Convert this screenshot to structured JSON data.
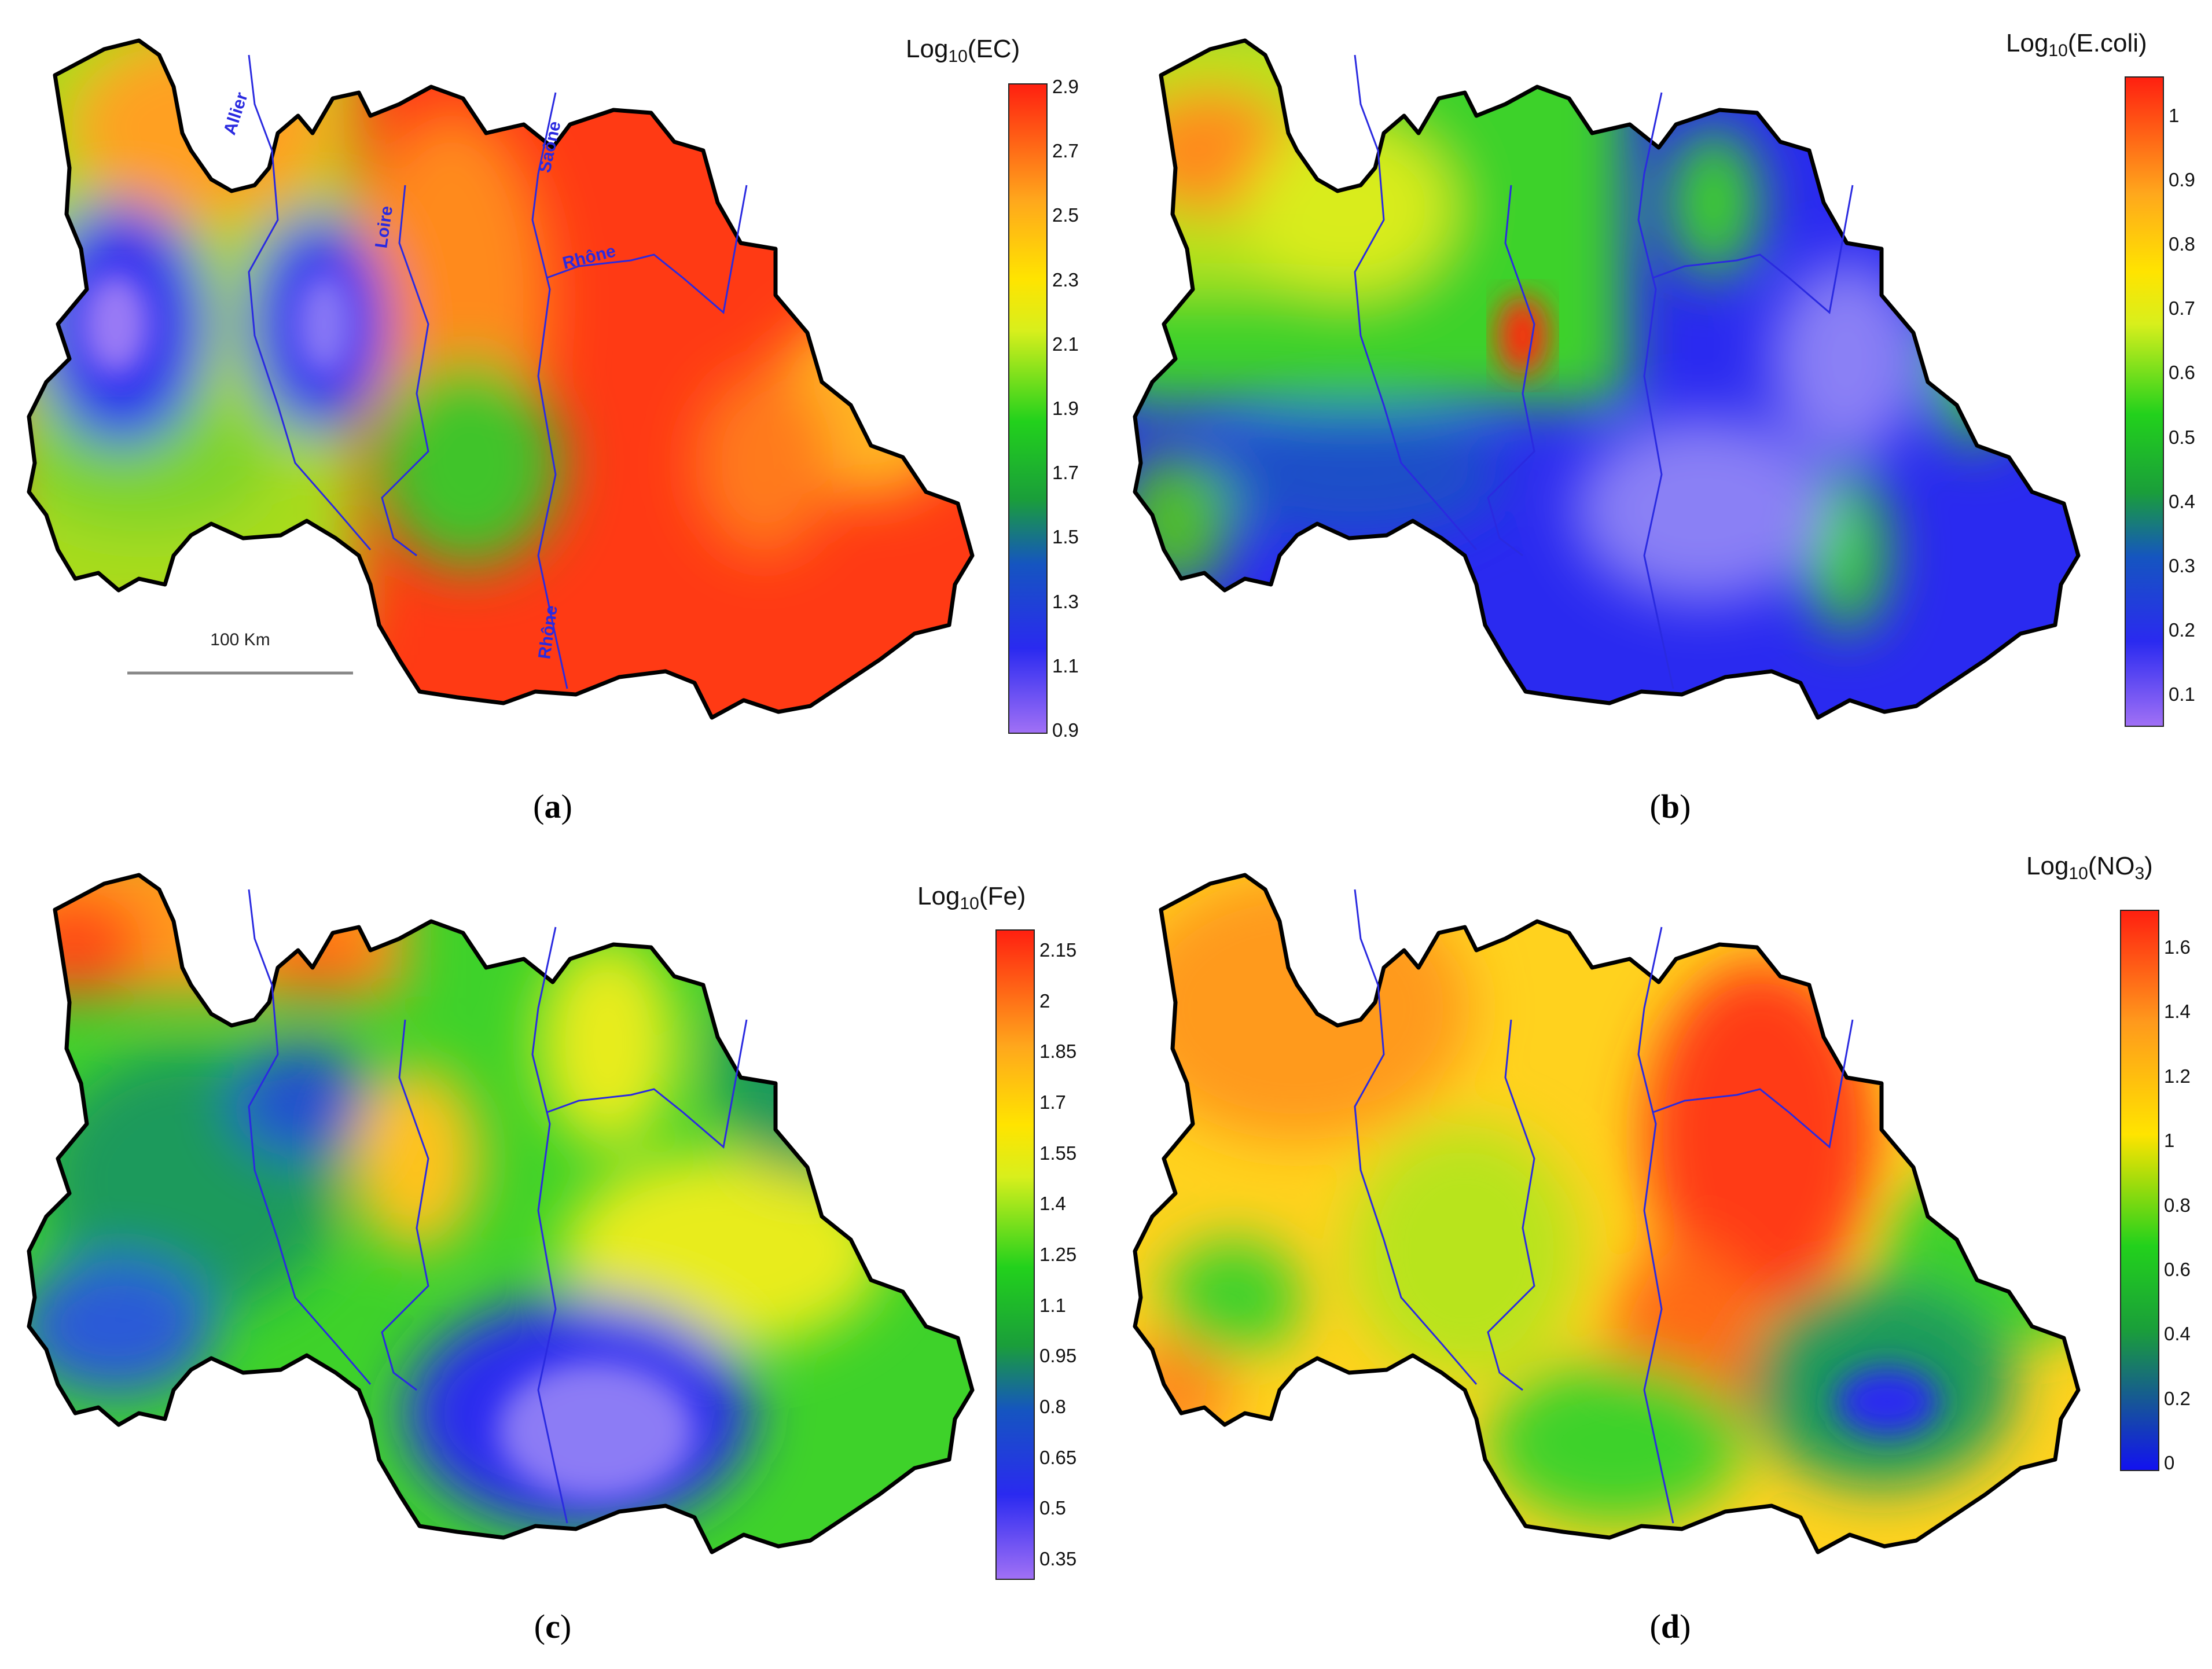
{
  "panels": [
    {
      "id": "a",
      "caption_letter": "a",
      "legend": {
        "prefix": "Log",
        "sub": "10",
        "suffix": "(EC)"
      },
      "ticks": [
        "2.9",
        "2.7",
        "2.5",
        "2.3",
        "2.1",
        "1.9",
        "1.7",
        "1.5",
        "1.3",
        "1.1",
        "0.9"
      ]
    },
    {
      "id": "b",
      "caption_letter": "b",
      "legend": {
        "prefix": "Log",
        "sub": "10",
        "suffix": "(E.coli)"
      },
      "ticks": [
        "1",
        "0.9",
        "0.8",
        "0.7",
        "0.6",
        "0.5",
        "0.4",
        "0.3",
        "0.2",
        "0.1"
      ]
    },
    {
      "id": "c",
      "caption_letter": "c",
      "legend": {
        "prefix": "Log",
        "sub": "10",
        "suffix": "(Fe)"
      },
      "ticks": [
        "2.15",
        "2",
        "1.85",
        "1.7",
        "1.55",
        "1.4",
        "1.25",
        "1.1",
        "0.95",
        "0.8",
        "0.65",
        "0.5",
        "0.35"
      ]
    },
    {
      "id": "d",
      "caption_letter": "d",
      "legend": {
        "prefix": "Log",
        "sub": "10",
        "suffix": "(NO",
        "sub2": "3",
        "suffix2": ")"
      },
      "ticks": [
        "1.6",
        "1.4",
        "1.2",
        "1",
        "0.8",
        "0.6",
        "0.4",
        "0.2",
        "0"
      ]
    }
  ],
  "rivers": {
    "allier": "Allier",
    "loire": "Loire",
    "saone": "Saône",
    "rhone_upper": "Rhône",
    "rhone_lower": "Rhône"
  },
  "scale_bar": {
    "label": "100 Km"
  },
  "colors": {
    "red": "#ff2010",
    "orange": "#ffa81c",
    "yellow": "#ffe400",
    "green": "#22d11c",
    "dark_green": "#1a9e3a",
    "blue": "#2a2af0",
    "violet": "#a070f5",
    "river": "#2a2ae0",
    "border": "#000000"
  }
}
